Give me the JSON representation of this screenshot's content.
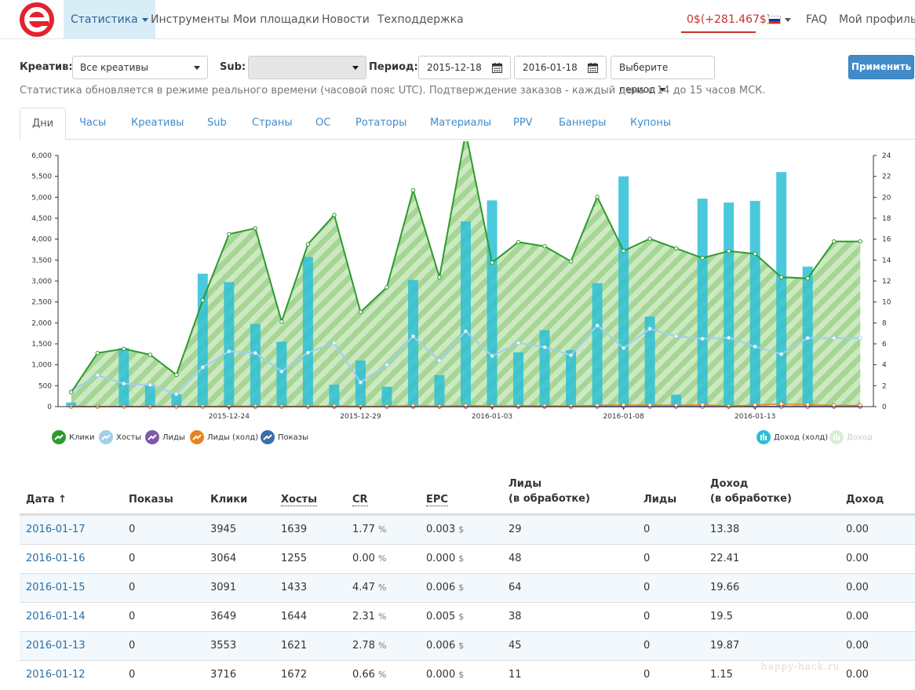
{
  "nav": {
    "items": [
      {
        "label": "Статистика",
        "active": true
      },
      {
        "label": "Инструменты"
      },
      {
        "label": "Мои площадки"
      },
      {
        "label": "Новости"
      },
      {
        "label": "Техподдержка"
      }
    ],
    "balance": "0$(+281.467$)",
    "faq": "FAQ",
    "profile": "Мой профиль"
  },
  "filters": {
    "creative_label": "Креатив:",
    "creative_value": "Все креативы",
    "sub_label": "Sub:",
    "sub_value": "",
    "period_label": "Период:",
    "date_from": "2015-12-18",
    "date_to": "2016-01-18",
    "period_select": "Выберите период",
    "apply": "Применить"
  },
  "note": "Статистика обновляется в режиме реального времени (часовой пояс UTC). Подтверждение заказов - каждый день с 14 до 15 часов МСК.",
  "tabs": [
    "Дни",
    "Часы",
    "Креативы",
    "Sub",
    "Страны",
    "ОС",
    "Ротаторы",
    "Материалы",
    "PPV",
    "Баннеры",
    "Купоны"
  ],
  "colors": {
    "clicks": "#2e9a2e",
    "clicks_fill": "#a8d89a",
    "hosts": "#9fd0ec",
    "leads": "#7e57a8",
    "leads_hold": "#e8821f",
    "shows": "#3a6fa8",
    "income_hold": "#2bbfd6",
    "income": "#b5dfa8"
  },
  "chart_data": {
    "type": "bar",
    "x": [
      "2015-12-18",
      "2015-12-19",
      "2015-12-20",
      "2015-12-21",
      "2015-12-22",
      "2015-12-23",
      "2015-12-24",
      "2015-12-25",
      "2015-12-26",
      "2015-12-27",
      "2015-12-28",
      "2015-12-29",
      "2015-12-30",
      "2015-12-31",
      "2016-01-01",
      "2016-01-02",
      "2016-01-03",
      "2016-01-04",
      "2016-01-05",
      "2016-01-06",
      "2016-01-07",
      "2016-01-08",
      "2016-01-09",
      "2016-01-10",
      "2016-01-11",
      "2016-01-12",
      "2016-01-13",
      "2016-01-14",
      "2016-01-15",
      "2016-01-16",
      "2016-01-17"
    ],
    "x_ticks": [
      "2015-12-24",
      "2015-12-29",
      "2016-01-03",
      "2016-01-08",
      "2016-01-13"
    ],
    "y_left_ticks": [
      "0",
      "500",
      "1,000",
      "1,500",
      "2,000",
      "2,500",
      "3,000",
      "3,500",
      "4,000",
      "4,500",
      "5,000",
      "5,500",
      "6,000"
    ],
    "y_right_ticks": [
      "0",
      "2",
      "4",
      "6",
      "8",
      "10",
      "12",
      "14",
      "16",
      "18",
      "20",
      "22",
      "24"
    ],
    "ylim_left": [
      0,
      6000
    ],
    "ylim_right": [
      0,
      24
    ],
    "series": [
      {
        "name": "Клики",
        "kind": "area",
        "axis": "left",
        "values": [
          340,
          1280,
          1380,
          1240,
          760,
          2540,
          4120,
          4260,
          2030,
          3880,
          4580,
          2260,
          2850,
          5170,
          3090,
          6550,
          3440,
          3930,
          3830,
          3470,
          5010,
          3720,
          4010,
          3780,
          3550,
          3716,
          3649,
          3091,
          3064,
          3945,
          3945
        ]
      },
      {
        "name": "Хосты",
        "kind": "line",
        "axis": "left",
        "values": [
          380,
          750,
          550,
          520,
          300,
          940,
          1320,
          1280,
          840,
          1290,
          1520,
          580,
          1000,
          1680,
          1100,
          1800,
          1210,
          1520,
          1420,
          1230,
          1940,
          1400,
          1860,
          1680,
          1621,
          1644,
          1433,
          1255,
          1639,
          1639,
          1639
        ]
      },
      {
        "name": "Лиды",
        "kind": "line",
        "axis": "right",
        "values": [
          0,
          0,
          0,
          0,
          0,
          0,
          0,
          0,
          0,
          0,
          0,
          0,
          0,
          0,
          0,
          0,
          0,
          0,
          0,
          0,
          0,
          0,
          0,
          0,
          0,
          0,
          0,
          0,
          0,
          0,
          0
        ]
      },
      {
        "name": "Лиды (холд)",
        "kind": "line",
        "axis": "left",
        "values": [
          0,
          0,
          0,
          0,
          0,
          5,
          10,
          10,
          5,
          10,
          15,
          5,
          10,
          20,
          10,
          25,
          15,
          20,
          20,
          15,
          30,
          40,
          35,
          30,
          45,
          11,
          38,
          64,
          48,
          29,
          29
        ]
      },
      {
        "name": "Показы",
        "kind": "line",
        "axis": "left",
        "values": [
          0,
          0,
          0,
          0,
          0,
          0,
          0,
          0,
          0,
          0,
          0,
          0,
          0,
          0,
          0,
          0,
          0,
          0,
          0,
          0,
          0,
          0,
          0,
          0,
          0,
          0,
          0,
          0,
          0,
          0,
          0
        ]
      },
      {
        "name": "Доход (холд)",
        "kind": "bar",
        "axis": "right",
        "values": [
          0.4,
          0,
          5.6,
          2.1,
          1.2,
          12.7,
          11.9,
          7.9,
          6.2,
          14.3,
          2.1,
          4.4,
          1.9,
          12.1,
          3.0,
          17.7,
          19.7,
          5.2,
          7.3,
          5.4,
          11.8,
          22.0,
          8.6,
          1.15,
          19.87,
          19.5,
          19.66,
          22.41,
          13.38,
          0,
          0
        ]
      },
      {
        "name": "Доход",
        "kind": "bar",
        "axis": "right",
        "values": [
          0,
          0,
          0,
          0,
          0,
          0,
          0,
          0,
          0,
          0,
          0,
          0,
          0,
          0,
          0,
          0,
          0,
          0,
          0,
          0,
          0,
          0,
          0,
          0,
          0,
          0,
          0,
          0,
          0,
          0,
          0
        ]
      }
    ],
    "legend": [
      "Клики",
      "Хосты",
      "Лиды",
      "Лиды (холд)",
      "Показы",
      "Доход (холд)",
      "Доход"
    ],
    "legend_position": "bottom"
  },
  "table": {
    "headers": [
      "Дата ↑",
      "Показы",
      "Клики",
      "Хосты",
      "CR",
      "EPC",
      "Лиды",
      "(в обработке)",
      "Лиды",
      "Доход",
      "(в обработке)",
      "Доход"
    ],
    "rows": [
      {
        "date": "2016-01-17",
        "shows": "0",
        "clicks": "3945",
        "hosts": "1639",
        "cr": "1.77",
        "cr_unit": "%",
        "epc": "0.003",
        "epc_unit": "$",
        "leads_proc": "29",
        "leads": "0",
        "income_proc": "13.38",
        "income": "0.00"
      },
      {
        "date": "2016-01-16",
        "shows": "0",
        "clicks": "3064",
        "hosts": "1255",
        "cr": "0.00",
        "cr_unit": "%",
        "epc": "0.000",
        "epc_unit": "$",
        "leads_proc": "48",
        "leads": "0",
        "income_proc": "22.41",
        "income": "0.00"
      },
      {
        "date": "2016-01-15",
        "shows": "0",
        "clicks": "3091",
        "hosts": "1433",
        "cr": "4.47",
        "cr_unit": "%",
        "epc": "0.006",
        "epc_unit": "$",
        "leads_proc": "64",
        "leads": "0",
        "income_proc": "19.66",
        "income": "0.00"
      },
      {
        "date": "2016-01-14",
        "shows": "0",
        "clicks": "3649",
        "hosts": "1644",
        "cr": "2.31",
        "cr_unit": "%",
        "epc": "0.005",
        "epc_unit": "$",
        "leads_proc": "38",
        "leads": "0",
        "income_proc": "19.5",
        "income": "0.00"
      },
      {
        "date": "2016-01-13",
        "shows": "0",
        "clicks": "3553",
        "hosts": "1621",
        "cr": "2.78",
        "cr_unit": "%",
        "epc": "0.006",
        "epc_unit": "$",
        "leads_proc": "45",
        "leads": "0",
        "income_proc": "19.87",
        "income": "0.00"
      },
      {
        "date": "2016-01-12",
        "shows": "0",
        "clicks": "3716",
        "hosts": "1672",
        "cr": "0.66",
        "cr_unit": "%",
        "epc": "0.000",
        "epc_unit": "$",
        "leads_proc": "11",
        "leads": "0",
        "income_proc": "1.15",
        "income": "0.00"
      }
    ]
  },
  "watermark": "happy-hack.ru"
}
